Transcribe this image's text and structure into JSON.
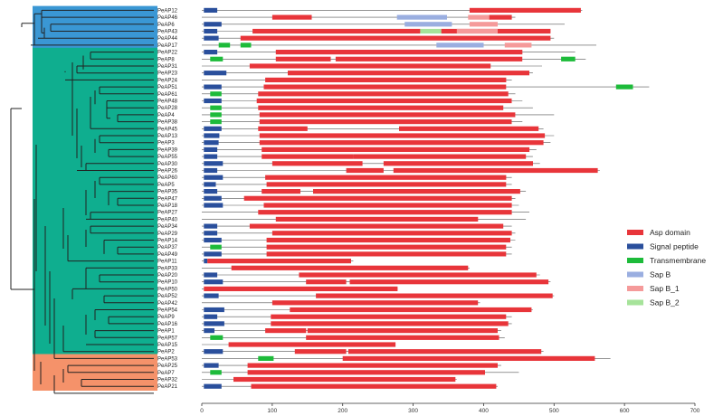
{
  "figure": {
    "genes": [
      "PeAP12",
      "PeAP46",
      "PeAP6",
      "PeAP43",
      "PeAP44",
      "PeAP17",
      "PeAP22",
      "PeAP8",
      "PeAP31",
      "PeAP23",
      "PeAP24",
      "PeAP51",
      "PeAP61",
      "PeAP48",
      "PeAP28",
      "PeAP4",
      "PeAP38",
      "PeAP45",
      "PeAP13",
      "PeAP3",
      "PeAP39",
      "PeAP55",
      "PeAP30",
      "PeAP26",
      "PeAP60",
      "PeAP5",
      "PeAP35",
      "PeAP47",
      "PeAP18",
      "PeAP27",
      "PeAP40",
      "PeAP34",
      "PeAP29",
      "PeAP14",
      "PeAP37",
      "PeAP49",
      "PeAP11",
      "PeAP33",
      "PeAP20",
      "PeAP10",
      "PeAP50",
      "PeAP52",
      "PeAP42",
      "PeAP54",
      "PeAP9",
      "PeAP16",
      "PeAP1",
      "PeAP57",
      "PeAP15",
      "PeAP2",
      "PeAP53",
      "PeAP25",
      "PeAP7",
      "PeAP32",
      "PeAP21"
    ],
    "clades": [
      {
        "name": "clade-blue",
        "color": "#3a97d4",
        "from": 0,
        "to": 5
      },
      {
        "name": "clade-teal",
        "color": "#0fae8f",
        "from": 6,
        "to": 49
      },
      {
        "name": "clade-salmon",
        "color": "#f5926a",
        "from": 50,
        "to": 54
      }
    ],
    "colors": {
      "asp": "#e8353a",
      "sig": "#2a4f9c",
      "tm": "#1dbb3a",
      "sapb": "#9aaee0",
      "sapb1": "#f59a9a",
      "sapb2": "#a6e39a",
      "line": "#555555"
    },
    "legend": [
      {
        "key": "asp",
        "label": "Asp domain"
      },
      {
        "key": "sig",
        "label": "Signal peptide"
      },
      {
        "key": "tm",
        "label": "Transmembrane"
      },
      {
        "key": "sapb",
        "label": "Sap B"
      },
      {
        "key": "sapb1",
        "label": "Sap B_1"
      },
      {
        "key": "sapb2",
        "label": "Sap B_2"
      }
    ],
    "axis": {
      "ticks": [
        0,
        100,
        200,
        300,
        400,
        500,
        600,
        700
      ],
      "min": 0,
      "max": 700
    },
    "proteins": [
      {
        "len": 540,
        "d": [
          [
            "sig",
            3,
            22
          ],
          [
            "asp",
            380,
            538
          ]
        ]
      },
      {
        "len": 445,
        "d": [
          [
            "asp",
            100,
            156
          ],
          [
            "sapb",
            277,
            348
          ],
          [
            "sapb1",
            378,
            410
          ],
          [
            "asp",
            408,
            440
          ]
        ]
      },
      {
        "len": 515,
        "d": [
          [
            "sig",
            3,
            28
          ],
          [
            "sapb",
            288,
            355
          ],
          [
            "sapb1",
            380,
            420
          ]
        ]
      },
      {
        "len": 495,
        "d": [
          [
            "sig",
            3,
            22
          ],
          [
            "asp",
            72,
            310
          ],
          [
            "sapb2",
            310,
            340
          ],
          [
            "asp",
            340,
            495
          ],
          [
            "sapb1",
            362,
            420
          ]
        ]
      },
      {
        "len": 500,
        "d": [
          [
            "sig",
            3,
            24
          ],
          [
            "asp",
            55,
            495
          ]
        ]
      },
      {
        "len": 560,
        "d": [
          [
            "tm",
            24,
            40
          ],
          [
            "tm",
            55,
            70
          ],
          [
            "sapb",
            333,
            400
          ],
          [
            "sapb1",
            430,
            468
          ]
        ]
      },
      {
        "len": 530,
        "d": [
          [
            "sig",
            3,
            22
          ],
          [
            "asp",
            105,
            455
          ]
        ]
      },
      {
        "len": 545,
        "d": [
          [
            "tm",
            12,
            30
          ],
          [
            "asp",
            105,
            183
          ],
          [
            "asp",
            190,
            455
          ],
          [
            "tm",
            510,
            530
          ]
        ]
      },
      {
        "len": 483,
        "d": [
          [
            "asp",
            68,
            410
          ]
        ]
      },
      {
        "len": 470,
        "d": [
          [
            "sig",
            3,
            35
          ],
          [
            "asp",
            122,
            465
          ]
        ]
      },
      {
        "len": 440,
        "d": [
          [
            "asp",
            90,
            432
          ]
        ]
      },
      {
        "len": 635,
        "d": [
          [
            "sig",
            3,
            28
          ],
          [
            "asp",
            88,
            432
          ],
          [
            "tm",
            588,
            612
          ]
        ]
      },
      {
        "len": 445,
        "d": [
          [
            "tm",
            12,
            28
          ],
          [
            "asp",
            80,
            435
          ]
        ]
      },
      {
        "len": 455,
        "d": [
          [
            "sig",
            3,
            28
          ],
          [
            "asp",
            78,
            440
          ]
        ]
      },
      {
        "len": 470,
        "d": [
          [
            "tm",
            12,
            28
          ],
          [
            "asp",
            80,
            428
          ]
        ]
      },
      {
        "len": 500,
        "d": [
          [
            "tm",
            12,
            28
          ],
          [
            "asp",
            82,
            445
          ]
        ]
      },
      {
        "len": 455,
        "d": [
          [
            "tm",
            12,
            28
          ],
          [
            "asp",
            82,
            440
          ]
        ]
      },
      {
        "len": 485,
        "d": [
          [
            "sig",
            3,
            28
          ],
          [
            "asp",
            80,
            150
          ],
          [
            "asp",
            280,
            478
          ]
        ]
      },
      {
        "len": 500,
        "d": [
          [
            "sig",
            3,
            25
          ],
          [
            "asp",
            82,
            487
          ]
        ]
      },
      {
        "len": 495,
        "d": [
          [
            "sig",
            3,
            24
          ],
          [
            "asp",
            82,
            485
          ]
        ]
      },
      {
        "len": 475,
        "d": [
          [
            "sig",
            3,
            22
          ],
          [
            "asp",
            85,
            465
          ]
        ]
      },
      {
        "len": 470,
        "d": [
          [
            "sig",
            3,
            22
          ],
          [
            "asp",
            85,
            215
          ],
          [
            "asp",
            215,
            460
          ]
        ]
      },
      {
        "len": 480,
        "d": [
          [
            "sig",
            3,
            30
          ],
          [
            "asp",
            100,
            228
          ],
          [
            "asp",
            258,
            470
          ]
        ]
      },
      {
        "len": 565,
        "d": [
          [
            "sig",
            3,
            22
          ],
          [
            "asp",
            205,
            258
          ],
          [
            "asp",
            272,
            562
          ]
        ]
      },
      {
        "len": 440,
        "d": [
          [
            "sig",
            3,
            30
          ],
          [
            "asp",
            90,
            432
          ]
        ]
      },
      {
        "len": 440,
        "d": [
          [
            "sig",
            3,
            20
          ],
          [
            "asp",
            92,
            432
          ]
        ]
      },
      {
        "len": 460,
        "d": [
          [
            "sig",
            3,
            22
          ],
          [
            "asp",
            85,
            140
          ],
          [
            "asp",
            158,
            452
          ]
        ]
      },
      {
        "len": 445,
        "d": [
          [
            "sig",
            3,
            28
          ],
          [
            "asp",
            60,
            440
          ]
        ]
      },
      {
        "len": 450,
        "d": [
          [
            "sig",
            3,
            30
          ],
          [
            "asp",
            88,
            440
          ]
        ]
      },
      {
        "len": 465,
        "d": [
          [
            "asp",
            80,
            440
          ]
        ]
      },
      {
        "len": 460,
        "d": [
          [
            "asp",
            105,
            392
          ]
        ]
      },
      {
        "len": 440,
        "d": [
          [
            "sig",
            3,
            22
          ],
          [
            "asp",
            68,
            428
          ]
        ]
      },
      {
        "len": 445,
        "d": [
          [
            "sig",
            3,
            22
          ],
          [
            "asp",
            100,
            440
          ]
        ]
      },
      {
        "len": 445,
        "d": [
          [
            "sig",
            3,
            28
          ],
          [
            "asp",
            92,
            438
          ]
        ]
      },
      {
        "len": 440,
        "d": [
          [
            "tm",
            12,
            28
          ],
          [
            "asp",
            92,
            432
          ]
        ]
      },
      {
        "len": 440,
        "d": [
          [
            "sig",
            3,
            28
          ],
          [
            "asp",
            92,
            432
          ]
        ]
      },
      {
        "len": 215,
        "d": [
          [
            "sig",
            3,
            8
          ],
          [
            "asp",
            8,
            212
          ]
        ]
      },
      {
        "len": 380,
        "d": [
          [
            "asp",
            42,
            378
          ]
        ]
      },
      {
        "len": 480,
        "d": [
          [
            "sig",
            3,
            22
          ],
          [
            "asp",
            138,
            475
          ]
        ]
      },
      {
        "len": 495,
        "d": [
          [
            "sig",
            3,
            30
          ],
          [
            "asp",
            148,
            205
          ],
          [
            "asp",
            210,
            492
          ]
        ]
      },
      {
        "len": 278,
        "d": [
          [
            "asp",
            3,
            278
          ]
        ]
      },
      {
        "len": 500,
        "d": [
          [
            "sig",
            3,
            24
          ],
          [
            "asp",
            162,
            498
          ]
        ]
      },
      {
        "len": 395,
        "d": [
          [
            "asp",
            100,
            392
          ]
        ]
      },
      {
        "len": 470,
        "d": [
          [
            "sig",
            3,
            32
          ],
          [
            "asp",
            125,
            468
          ]
        ]
      },
      {
        "len": 440,
        "d": [
          [
            "sig",
            3,
            22
          ],
          [
            "asp",
            98,
            432
          ]
        ]
      },
      {
        "len": 440,
        "d": [
          [
            "sig",
            3,
            32
          ],
          [
            "asp",
            98,
            435
          ]
        ]
      },
      {
        "len": 425,
        "d": [
          [
            "sig",
            3,
            18
          ],
          [
            "asp",
            90,
            148
          ],
          [
            "asp",
            150,
            420
          ]
        ]
      },
      {
        "len": 430,
        "d": [
          [
            "tm",
            12,
            30
          ],
          [
            "asp",
            148,
            422
          ]
        ]
      },
      {
        "len": 275,
        "d": [
          [
            "asp",
            38,
            275
          ]
        ]
      },
      {
        "len": 485,
        "d": [
          [
            "sig",
            3,
            30
          ],
          [
            "asp",
            132,
            205
          ],
          [
            "asp",
            208,
            482
          ]
        ]
      },
      {
        "len": 580,
        "d": [
          [
            "tm",
            80,
            102
          ],
          [
            "asp",
            200,
            558
          ]
        ]
      },
      {
        "len": 425,
        "d": [
          [
            "sig",
            3,
            24
          ],
          [
            "asp",
            65,
            420
          ]
        ]
      },
      {
        "len": 450,
        "d": [
          [
            "tm",
            12,
            28
          ],
          [
            "asp",
            65,
            402
          ]
        ]
      },
      {
        "len": 362,
        "d": [
          [
            "asp",
            45,
            360
          ]
        ]
      },
      {
        "len": 420,
        "d": [
          [
            "sig",
            3,
            28
          ],
          [
            "asp",
            70,
            418
          ]
        ]
      }
    ]
  }
}
